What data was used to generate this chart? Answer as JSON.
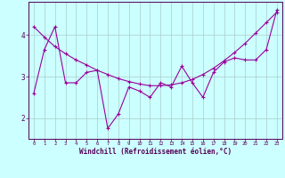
{
  "xlabel": "Windchill (Refroidissement éolien,°C)",
  "x_values": [
    0,
    1,
    2,
    3,
    4,
    5,
    6,
    7,
    8,
    9,
    10,
    11,
    12,
    13,
    14,
    15,
    16,
    17,
    18,
    19,
    20,
    21,
    22,
    23
  ],
  "y_jagged": [
    2.6,
    3.65,
    4.2,
    2.85,
    2.85,
    3.1,
    3.15,
    1.75,
    2.1,
    2.75,
    2.65,
    2.5,
    2.85,
    2.75,
    3.25,
    2.85,
    2.5,
    3.1,
    3.35,
    3.45,
    3.4,
    3.4,
    3.65,
    4.6
  ],
  "y_trend": [
    4.2,
    3.95,
    3.72,
    3.55,
    3.4,
    3.28,
    3.15,
    3.05,
    2.95,
    2.88,
    2.82,
    2.78,
    2.78,
    2.8,
    2.85,
    2.93,
    3.05,
    3.2,
    3.38,
    3.58,
    3.8,
    4.05,
    4.3,
    4.55
  ],
  "line_color": "#990099",
  "bg_color": "#ccffff",
  "grid_color": "#aacccc",
  "ylim": [
    1.5,
    4.8
  ],
  "yticks": [
    2,
    3,
    4
  ],
  "xlim": [
    -0.5,
    23.5
  ]
}
